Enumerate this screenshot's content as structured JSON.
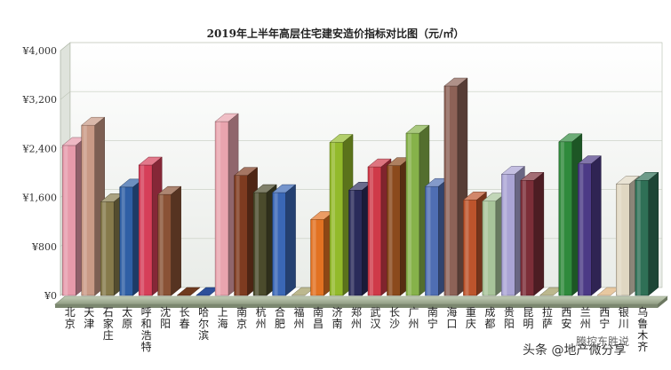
{
  "chart_data": {
    "type": "bar",
    "title": "2019年上半年高层住宅建安造价指标对比图（元/㎡）",
    "categories": [
      "北京",
      "天津",
      "石家庄",
      "太原",
      "呼和浩特",
      "沈阳",
      "长春",
      "哈尔滨",
      "上海",
      "南京",
      "杭州",
      "合肥",
      "福州",
      "南昌",
      "济南",
      "郑州",
      "武汉",
      "长沙",
      "广州",
      "南宁",
      "海口",
      "重庆",
      "成都",
      "贵阳",
      "昆明",
      "拉萨",
      "西安",
      "兰州",
      "西宁",
      "银川",
      "乌鲁木齐"
    ],
    "values": [
      2450,
      2780,
      1530,
      1770,
      2130,
      1650,
      0,
      0,
      2840,
      1960,
      1680,
      1680,
      0,
      1240,
      2500,
      1720,
      2100,
      2120,
      2650,
      1780,
      3420,
      1560,
      1540,
      1980,
      1880,
      0,
      2510,
      2150,
      0,
      1820,
      1880
    ],
    "colors": [
      "#e79aab",
      "#c99a86",
      "#867a4b",
      "#2f5fa5",
      "#d63f59",
      "#8a5236",
      "#6f3a1f",
      "#2c4f9a",
      "#e9a4ae",
      "#7e3b20",
      "#4b4b2c",
      "#3a67b6",
      "#bcb88e",
      "#e27222",
      "#93ba2b",
      "#2a2b5a",
      "#cf3a49",
      "#8b4a1c",
      "#86b24a",
      "#4f6eb3",
      "#8d6257",
      "#bd542c",
      "#a8c49a",
      "#aaa4d4",
      "#7c2e38",
      "#bcb88e",
      "#2f8a3c",
      "#4c3a86",
      "#e8c8a0",
      "#e0d7c2",
      "#2f7056"
    ],
    "ylim": [
      0,
      4000
    ],
    "yticks": [
      0,
      800,
      1600,
      2400,
      3200,
      4000
    ],
    "ytick_labels": [
      "¥0",
      "¥800",
      "¥1,600",
      "¥2,400",
      "¥3,200",
      "¥4,000"
    ],
    "grid": true
  },
  "watermark": {
    "text": "头条 @地产微分享",
    "credit": "腾控东胜说"
  }
}
